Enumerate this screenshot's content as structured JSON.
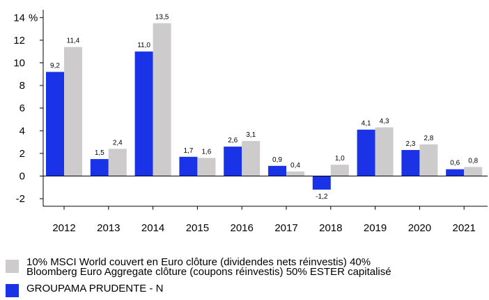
{
  "chart_data": {
    "type": "bar",
    "categories": [
      "2012",
      "2013",
      "2014",
      "2015",
      "2016",
      "2017",
      "2018",
      "2019",
      "2020",
      "2021"
    ],
    "series": [
      {
        "name": "GROUPAMA PRUDENTE - N",
        "values": [
          9.2,
          1.5,
          11.0,
          1.7,
          2.6,
          0.9,
          -1.2,
          4.1,
          2.3,
          0.6
        ],
        "labels": [
          "9,2",
          "1,5",
          "11,0",
          "1,7",
          "2,6",
          "0,9",
          "-1,2",
          "4,1",
          "2,3",
          "0,6"
        ],
        "color": "#1a33e6"
      },
      {
        "name": "10% MSCI World couvert en Euro clôture (dividendes nets réinvestis) 40%\nBloomberg Euro Aggregate clôture (coupons réinvestis) 50% ESTER capitalisé",
        "values": [
          11.4,
          2.4,
          13.5,
          1.6,
          3.1,
          0.4,
          1.0,
          4.3,
          2.8,
          0.8
        ],
        "labels": [
          "11,4",
          "2,4",
          "13,5",
          "1,6",
          "3,1",
          "0,4",
          "1,0",
          "4,3",
          "2,8",
          "0,8"
        ],
        "color": "#cdcbcb"
      }
    ],
    "ylabel": "%",
    "ylim": [
      -3,
      15
    ],
    "yticks": [
      -2,
      0,
      2,
      4,
      6,
      8,
      10,
      12,
      14
    ],
    "ytick_labels": [
      "-2",
      "0",
      "2",
      "4",
      "6",
      "8",
      "10",
      "12",
      "14"
    ],
    "grid": false,
    "legend_position": "bottom-left"
  }
}
